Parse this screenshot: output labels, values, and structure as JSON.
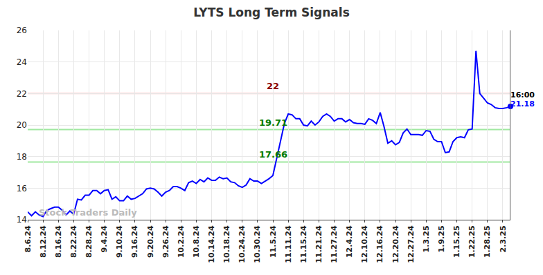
{
  "chart_data": {
    "type": "line",
    "title": "LYTS Long Term Signals",
    "categories": [
      "8.6.24",
      null,
      null,
      null,
      "8.12.24",
      null,
      null,
      null,
      "8.16.24",
      null,
      null,
      null,
      "8.22.24",
      null,
      null,
      null,
      "8.28.24",
      null,
      null,
      null,
      "9.4.24",
      null,
      null,
      null,
      "9.10.24",
      null,
      null,
      null,
      "9.16.24",
      null,
      null,
      null,
      "9.20.24",
      null,
      null,
      null,
      "9.26.24",
      null,
      null,
      null,
      "10.2.24",
      null,
      null,
      null,
      "10.8.24",
      null,
      null,
      null,
      "10.14.24",
      null,
      null,
      null,
      "10.18.24",
      null,
      null,
      null,
      "10.24.24",
      null,
      null,
      null,
      "10.30.24",
      null,
      null,
      null,
      "11.5.24",
      null,
      null,
      null,
      "11.11.24",
      null,
      null,
      null,
      "11.15.24",
      null,
      null,
      null,
      "11.21.24",
      null,
      null,
      null,
      "11.27.24",
      null,
      null,
      null,
      "12.4.24",
      null,
      null,
      null,
      "12.10.24",
      null,
      null,
      null,
      "12.16.24",
      null,
      null,
      null,
      "12.20.24",
      null,
      null,
      null,
      "12.27.24",
      null,
      null,
      null,
      "1.3.25",
      null,
      null,
      null,
      "1.9.25",
      null,
      null,
      null,
      "1.15.25",
      null,
      null,
      null,
      "1.22.25",
      null,
      null,
      null,
      "1.28.25",
      null,
      null,
      null,
      "2.3.25",
      null,
      null
    ],
    "values": [
      14.5,
      14.25,
      14.5,
      14.3,
      14.2,
      14.6,
      14.7,
      14.8,
      14.8,
      14.6,
      14.3,
      14.55,
      14.35,
      15.3,
      15.25,
      15.55,
      15.55,
      15.85,
      15.85,
      15.65,
      15.85,
      15.9,
      15.3,
      15.45,
      15.2,
      15.2,
      15.5,
      15.3,
      15.35,
      15.5,
      15.65,
      15.95,
      16.0,
      15.95,
      15.75,
      15.5,
      15.75,
      15.85,
      16.1,
      16.1,
      16.0,
      15.85,
      16.35,
      16.45,
      16.3,
      16.55,
      16.4,
      16.65,
      16.5,
      16.5,
      16.7,
      16.6,
      16.65,
      16.4,
      16.35,
      16.15,
      16.05,
      16.2,
      16.6,
      16.45,
      16.45,
      16.3,
      16.45,
      16.6,
      16.8,
      17.9,
      18.9,
      20.1,
      20.7,
      20.65,
      20.4,
      20.4,
      20.0,
      19.95,
      20.25,
      20.0,
      20.2,
      20.55,
      20.7,
      20.55,
      20.25,
      20.4,
      20.4,
      20.2,
      20.35,
      20.15,
      20.1,
      20.1,
      20.05,
      20.4,
      20.3,
      20.1,
      20.8,
      19.9,
      18.85,
      19.0,
      18.75,
      18.9,
      19.5,
      19.75,
      19.4,
      19.4,
      19.4,
      19.35,
      19.65,
      19.6,
      19.1,
      18.95,
      18.95,
      18.25,
      18.3,
      18.95,
      19.2,
      19.25,
      19.2,
      19.7,
      19.75,
      24.7,
      22.0,
      21.7,
      21.4,
      21.3,
      21.1,
      21.05,
      21.05,
      21.1,
      21.18
    ],
    "color": "#0000ff",
    "ylim": [
      14,
      26
    ],
    "yticks": [
      14,
      16,
      18,
      20,
      22,
      24,
      26
    ],
    "grid": true,
    "levels": [
      {
        "value": 22,
        "color": "#ffc8c8",
        "label_color": "#8b0000"
      },
      {
        "value": 19.71,
        "color": "#a0e8a0",
        "label_color": "#007a00"
      },
      {
        "value": 17.66,
        "color": "#a0e8a0",
        "label_color": "#007a00"
      }
    ],
    "end_label": {
      "time": "16:00",
      "value": 21.18
    },
    "watermark": "Stock Traders Daily"
  }
}
